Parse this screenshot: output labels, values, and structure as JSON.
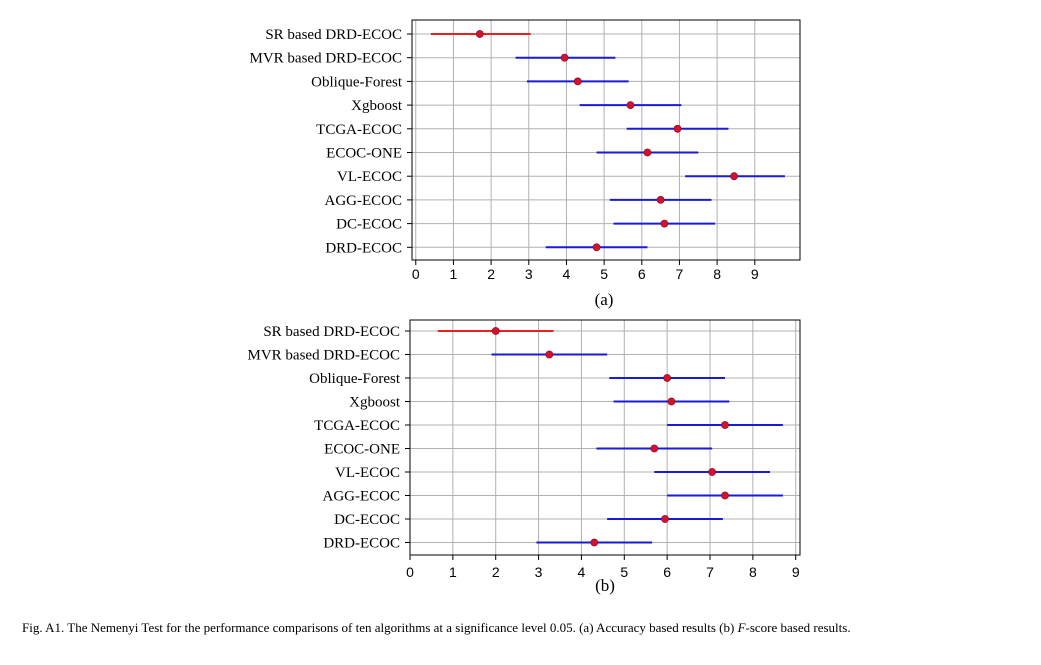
{
  "chart_data": [
    {
      "type": "interval",
      "panel_label": "(a)",
      "categories": [
        "SR based DRD-ECOC",
        "MVR based DRD-ECOC",
        "Oblique-Forest",
        "Xgboost",
        "TCGA-ECOC",
        "ECOC-ONE",
        "VL-ECOC",
        "AGG-ECOC",
        "DC-ECOC",
        "DRD-ECOC"
      ],
      "mean": [
        1.7,
        3.95,
        4.3,
        5.7,
        6.95,
        6.15,
        8.45,
        6.5,
        6.6,
        4.8
      ],
      "lower": [
        0.4,
        2.65,
        2.95,
        4.35,
        5.6,
        4.8,
        7.15,
        5.15,
        5.25,
        3.45
      ],
      "upper": [
        3.05,
        5.3,
        5.65,
        7.05,
        8.3,
        7.5,
        9.8,
        7.85,
        7.95,
        6.15
      ],
      "highlight_index": 0,
      "x_ticks": [
        "0",
        "1",
        "2",
        "3",
        "4",
        "5",
        "6",
        "7",
        "8",
        "9"
      ],
      "xlim": [
        -0.1,
        10.2
      ],
      "grid": true
    },
    {
      "type": "interval",
      "panel_label": "(b)",
      "categories": [
        "SR based DRD-ECOC",
        "MVR based DRD-ECOC",
        "Oblique-Forest",
        "Xgboost",
        "TCGA-ECOC",
        "ECOC-ONE",
        "VL-ECOC",
        "AGG-ECOC",
        "DC-ECOC",
        "DRD-ECOC"
      ],
      "mean": [
        2.0,
        3.25,
        6.0,
        6.1,
        7.35,
        5.7,
        7.05,
        7.35,
        5.95,
        4.3
      ],
      "lower": [
        0.65,
        1.9,
        4.65,
        4.75,
        6.0,
        4.35,
        5.7,
        6.0,
        4.6,
        2.95
      ],
      "upper": [
        3.35,
        4.6,
        7.35,
        7.45,
        8.7,
        7.05,
        8.4,
        8.7,
        7.3,
        5.65
      ],
      "highlight_index": 0,
      "x_ticks": [
        "0",
        "1",
        "2",
        "3",
        "4",
        "5",
        "6",
        "7",
        "8",
        "9"
      ],
      "xlim": [
        0,
        9.1
      ],
      "grid": true
    }
  ],
  "colors": {
    "highlight_line": "#e8211f",
    "interval_line": "#1a1ad9",
    "marker": "#d4122d",
    "grid": "#b0b0b0",
    "axis": "#000000"
  },
  "caption": {
    "prefix": "Fig. A1.  The Nemenyi Test for the performance comparisons of ten algorithms at a significance level 0.05. (a) Accuracy based results (b) ",
    "italic": "F",
    "suffix": "-score based results."
  }
}
